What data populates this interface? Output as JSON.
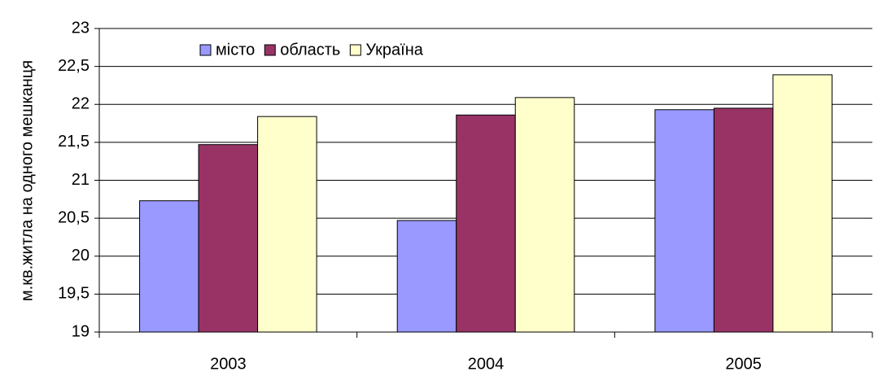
{
  "chart_data": {
    "type": "bar",
    "categories": [
      "2003",
      "2004",
      "2005"
    ],
    "series": [
      {
        "name": "місто",
        "color": "#9999ff",
        "values": [
          20.73,
          20.47,
          21.93
        ]
      },
      {
        "name": "область",
        "color": "#993366",
        "values": [
          21.47,
          21.86,
          21.95
        ]
      },
      {
        "name": "Україна",
        "color": "#ffffcc",
        "values": [
          21.84,
          22.09,
          22.39
        ]
      }
    ],
    "y_label": "м.кв.житла на одного мешканця",
    "ylim": [
      19,
      23
    ],
    "yticks": [
      19,
      {
        "value": 19.5,
        "label": "19,5"
      },
      20,
      {
        "value": 20.5,
        "label": "20,5"
      },
      21,
      {
        "value": 21.5,
        "label": "21,5"
      },
      22,
      {
        "value": 22.5,
        "label": "22,5"
      },
      23
    ],
    "grid": true,
    "legend": "top-left"
  }
}
